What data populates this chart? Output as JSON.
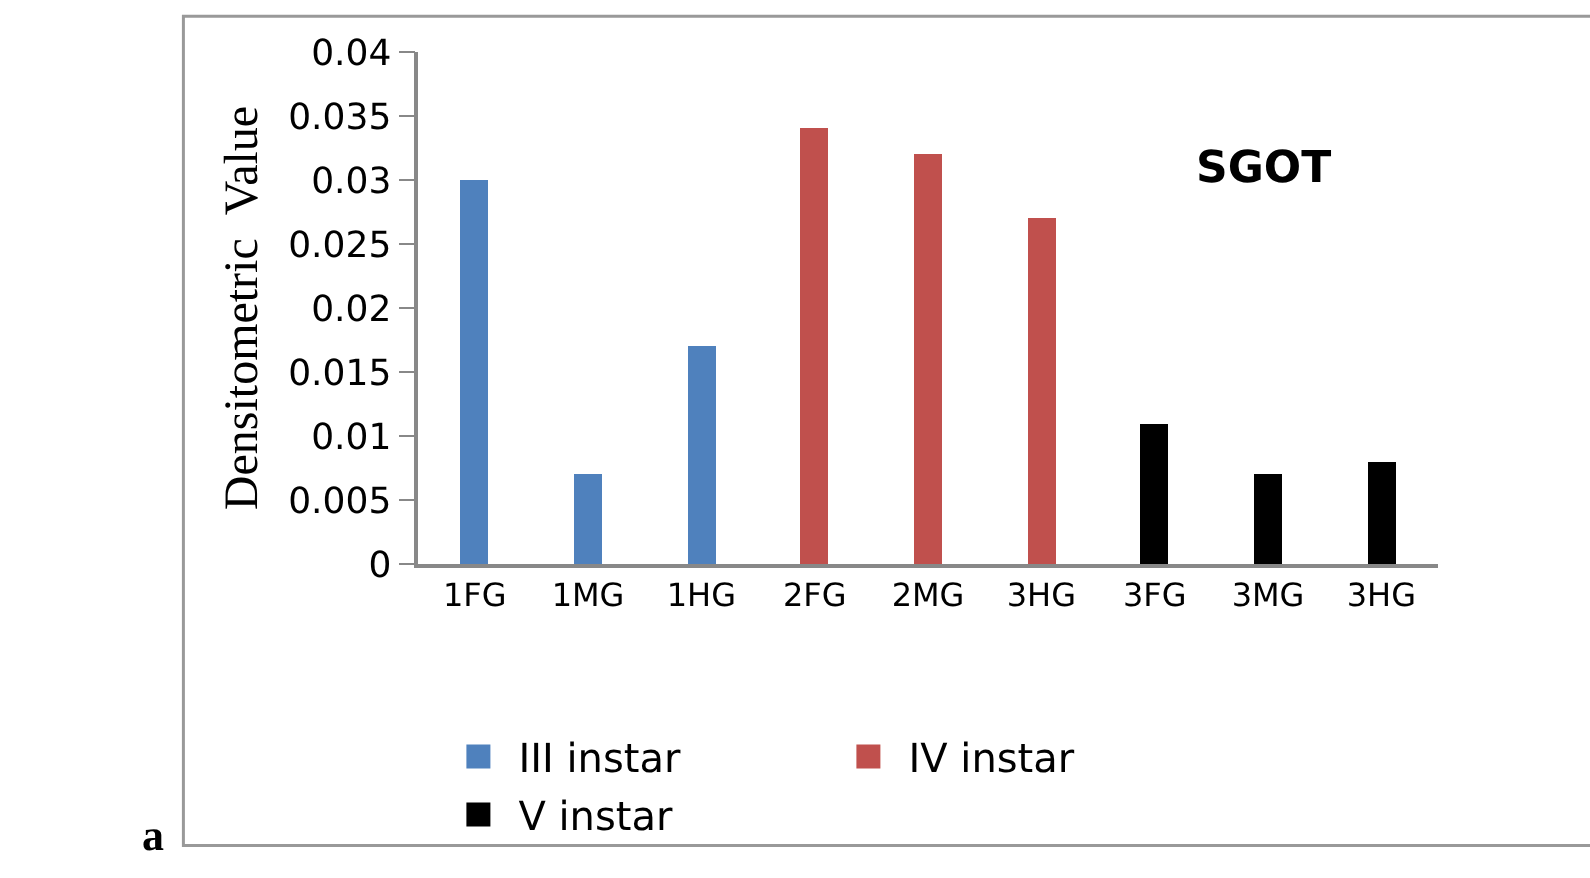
{
  "chart_data": {
    "type": "bar",
    "ylabel": "Densitometric  Value",
    "categories": [
      "1FG",
      "1MG",
      "1HG",
      "2FG",
      "2MG",
      "3HG",
      "3FG",
      "3MG",
      "3HG"
    ],
    "series": [
      {
        "name": "III instar",
        "color": "#4f81bd",
        "values": [
          0.03,
          0.007,
          0.017,
          null,
          null,
          null,
          null,
          null,
          null
        ]
      },
      {
        "name": "IV instar",
        "color": "#c0504d",
        "values": [
          null,
          null,
          null,
          0.034,
          0.032,
          0.027,
          null,
          null,
          null
        ]
      },
      {
        "name": "V instar",
        "color": "#000000",
        "values": [
          null,
          null,
          null,
          null,
          null,
          null,
          0.011,
          0.007,
          0.008
        ]
      }
    ],
    "ylim": [
      0,
      0.04
    ],
    "yticks": [
      0,
      0.005,
      0.01,
      0.015,
      0.02,
      0.025,
      0.03,
      0.035,
      0.04
    ],
    "legend": "bottom",
    "annotations": [
      {
        "text": "SGOT"
      },
      {
        "text": "a"
      }
    ]
  }
}
